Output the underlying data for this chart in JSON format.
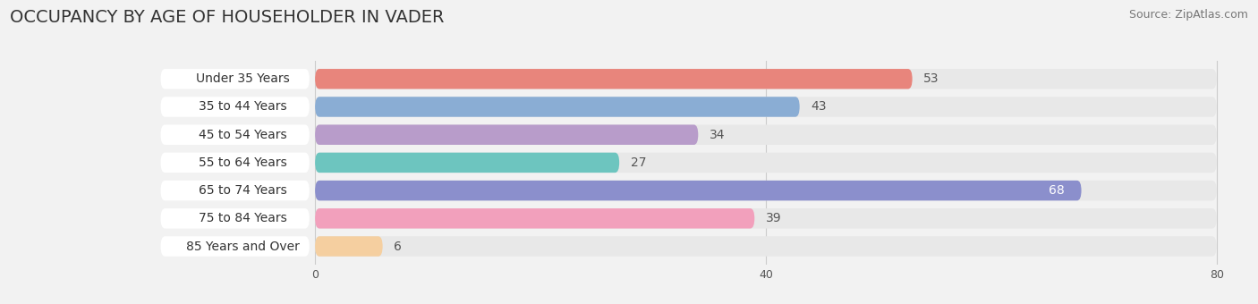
{
  "title": "OCCUPANCY BY AGE OF HOUSEHOLDER IN VADER",
  "source": "Source: ZipAtlas.com",
  "categories": [
    "Under 35 Years",
    "35 to 44 Years",
    "45 to 54 Years",
    "55 to 64 Years",
    "65 to 74 Years",
    "75 to 84 Years",
    "85 Years and Over"
  ],
  "values": [
    53,
    43,
    34,
    27,
    68,
    39,
    6
  ],
  "bar_colors": [
    "#e8857c",
    "#8aadd4",
    "#b89cca",
    "#6dc5bf",
    "#8b8fcc",
    "#f2a0bc",
    "#f5cfa0"
  ],
  "background_color": "#f2f2f2",
  "bar_bg_color": "#e8e8e8",
  "label_bg_color": "#ffffff",
  "xlim_max": 82,
  "data_max": 80,
  "xticks": [
    0,
    40,
    80
  ],
  "title_fontsize": 14,
  "label_fontsize": 10,
  "value_fontsize": 10,
  "source_fontsize": 9
}
